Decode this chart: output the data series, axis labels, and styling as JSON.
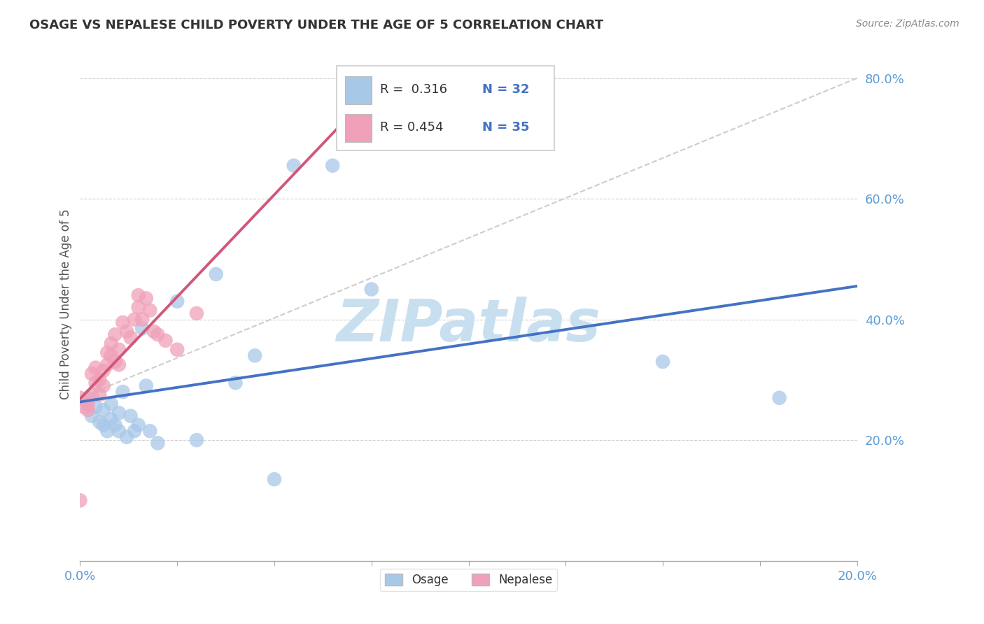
{
  "title": "OSAGE VS NEPALESE CHILD POVERTY UNDER THE AGE OF 5 CORRELATION CHART",
  "source": "Source: ZipAtlas.com",
  "ylabel": "Child Poverty Under the Age of 5",
  "xlim": [
    0.0,
    0.2
  ],
  "ylim": [
    0.0,
    0.85
  ],
  "yticks": [
    0.2,
    0.4,
    0.6,
    0.8
  ],
  "ytick_labels": [
    "20.0%",
    "40.0%",
    "60.0%",
    "80.0%"
  ],
  "xticks": [
    0.0,
    0.025,
    0.05,
    0.075,
    0.1,
    0.125,
    0.15,
    0.175,
    0.2
  ],
  "xtick_labels": [
    "0.0%",
    "",
    "",
    "",
    "",
    "",
    "",
    "",
    "20.0%"
  ],
  "osage_color": "#A8C8E8",
  "nepalese_color": "#F0A0B8",
  "osage_line_color": "#4472C4",
  "nepalese_line_color": "#D05878",
  "diagonal_color": "#C8C8C8",
  "watermark_text": "ZIPatlas",
  "watermark_color": "#C8DFF0",
  "legend_text_color": "#4472C4",
  "legend_N_color": "#4472C4",
  "background_color": "#FFFFFF",
  "grid_color": "#CCCCCC",
  "osage_x": [
    0.002,
    0.003,
    0.004,
    0.005,
    0.006,
    0.006,
    0.007,
    0.008,
    0.008,
    0.009,
    0.01,
    0.01,
    0.011,
    0.012,
    0.013,
    0.014,
    0.015,
    0.016,
    0.017,
    0.018,
    0.02,
    0.025,
    0.03,
    0.035,
    0.04,
    0.045,
    0.05,
    0.055,
    0.065,
    0.075,
    0.15,
    0.18
  ],
  "osage_y": [
    0.27,
    0.24,
    0.255,
    0.23,
    0.225,
    0.25,
    0.215,
    0.235,
    0.26,
    0.225,
    0.215,
    0.245,
    0.28,
    0.205,
    0.24,
    0.215,
    0.225,
    0.385,
    0.29,
    0.215,
    0.195,
    0.43,
    0.2,
    0.475,
    0.295,
    0.34,
    0.135,
    0.655,
    0.655,
    0.45,
    0.33,
    0.27
  ],
  "nepalese_x": [
    0.0,
    0.001,
    0.002,
    0.002,
    0.003,
    0.003,
    0.004,
    0.004,
    0.005,
    0.005,
    0.006,
    0.006,
    0.007,
    0.007,
    0.008,
    0.008,
    0.009,
    0.009,
    0.01,
    0.01,
    0.011,
    0.012,
    0.013,
    0.014,
    0.015,
    0.015,
    0.016,
    0.017,
    0.018,
    0.019,
    0.02,
    0.022,
    0.025,
    0.03,
    0.0
  ],
  "nepalese_y": [
    0.27,
    0.255,
    0.25,
    0.26,
    0.275,
    0.31,
    0.295,
    0.32,
    0.275,
    0.3,
    0.315,
    0.29,
    0.325,
    0.345,
    0.34,
    0.36,
    0.33,
    0.375,
    0.325,
    0.35,
    0.395,
    0.38,
    0.37,
    0.4,
    0.42,
    0.44,
    0.4,
    0.435,
    0.415,
    0.38,
    0.375,
    0.365,
    0.35,
    0.41,
    0.1
  ]
}
